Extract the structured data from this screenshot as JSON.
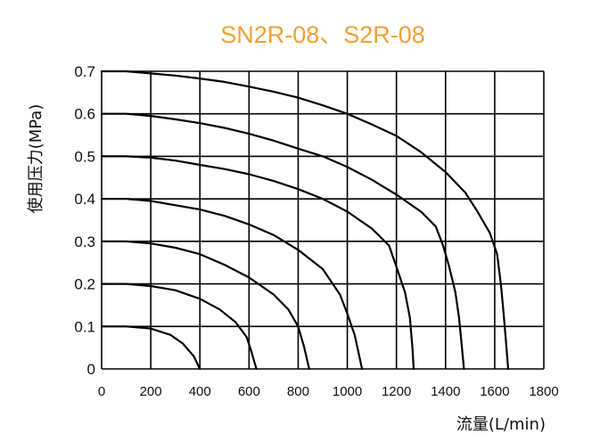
{
  "colors": {
    "title": "#F2A033",
    "line": "#000000",
    "grid": "#000000"
  },
  "chart_data": {
    "type": "line",
    "title": "SN2R-08、S2R-08",
    "xlabel": "流量(L/min)",
    "ylabel": "使用压力(MPa)",
    "xlim": [
      0,
      1800
    ],
    "ylim": [
      0,
      0.7
    ],
    "grid": true,
    "x_ticks": [
      "0",
      "200",
      "400",
      "600",
      "800",
      "1000",
      "1200",
      "1400",
      "1600",
      "1800"
    ],
    "y_ticks": [
      "0",
      "0.1",
      "0.2",
      "0.3",
      "0.4",
      "0.5",
      "0.6",
      "0.7"
    ],
    "series": [
      {
        "pressure": 0.1,
        "points": [
          [
            0,
            0.1
          ],
          [
            100,
            0.1
          ],
          [
            200,
            0.095
          ],
          [
            280,
            0.08
          ],
          [
            330,
            0.06
          ],
          [
            375,
            0.03
          ],
          [
            400,
            0.0
          ]
        ]
      },
      {
        "pressure": 0.2,
        "points": [
          [
            0,
            0.2
          ],
          [
            100,
            0.2
          ],
          [
            200,
            0.195
          ],
          [
            300,
            0.185
          ],
          [
            400,
            0.165
          ],
          [
            480,
            0.14
          ],
          [
            545,
            0.11
          ],
          [
            590,
            0.075
          ],
          [
            610,
            0.04
          ],
          [
            630,
            0.0
          ]
        ]
      },
      {
        "pressure": 0.3,
        "points": [
          [
            0,
            0.3
          ],
          [
            100,
            0.3
          ],
          [
            200,
            0.295
          ],
          [
            300,
            0.285
          ],
          [
            400,
            0.27
          ],
          [
            500,
            0.245
          ],
          [
            600,
            0.215
          ],
          [
            700,
            0.175
          ],
          [
            760,
            0.14
          ],
          [
            800,
            0.1
          ],
          [
            825,
            0.05
          ],
          [
            845,
            0.0
          ]
        ]
      },
      {
        "pressure": 0.4,
        "points": [
          [
            0,
            0.4
          ],
          [
            100,
            0.4
          ],
          [
            200,
            0.395
          ],
          [
            300,
            0.385
          ],
          [
            400,
            0.375
          ],
          [
            500,
            0.36
          ],
          [
            600,
            0.34
          ],
          [
            700,
            0.315
          ],
          [
            800,
            0.28
          ],
          [
            900,
            0.235
          ],
          [
            970,
            0.175
          ],
          [
            1000,
            0.13
          ],
          [
            1030,
            0.08
          ],
          [
            1060,
            0.0
          ]
        ]
      },
      {
        "pressure": 0.5,
        "points": [
          [
            0,
            0.5
          ],
          [
            100,
            0.5
          ],
          [
            200,
            0.497
          ],
          [
            300,
            0.49
          ],
          [
            400,
            0.48
          ],
          [
            500,
            0.47
          ],
          [
            600,
            0.458
          ],
          [
            700,
            0.442
          ],
          [
            800,
            0.423
          ],
          [
            900,
            0.4
          ],
          [
            1000,
            0.37
          ],
          [
            1100,
            0.33
          ],
          [
            1170,
            0.29
          ],
          [
            1200,
            0.24
          ],
          [
            1235,
            0.18
          ],
          [
            1255,
            0.12
          ],
          [
            1265,
            0.05
          ],
          [
            1270,
            0.0
          ]
        ]
      },
      {
        "pressure": 0.6,
        "points": [
          [
            0,
            0.6
          ],
          [
            100,
            0.6
          ],
          [
            200,
            0.595
          ],
          [
            300,
            0.587
          ],
          [
            400,
            0.578
          ],
          [
            500,
            0.567
          ],
          [
            600,
            0.553
          ],
          [
            700,
            0.537
          ],
          [
            800,
            0.518
          ],
          [
            900,
            0.5
          ],
          [
            1000,
            0.475
          ],
          [
            1100,
            0.445
          ],
          [
            1200,
            0.41
          ],
          [
            1300,
            0.37
          ],
          [
            1360,
            0.335
          ],
          [
            1390,
            0.29
          ],
          [
            1415,
            0.24
          ],
          [
            1440,
            0.18
          ],
          [
            1455,
            0.12
          ],
          [
            1465,
            0.06
          ],
          [
            1475,
            0.0
          ]
        ]
      },
      {
        "pressure": 0.7,
        "points": [
          [
            0,
            0.7
          ],
          [
            100,
            0.7
          ],
          [
            200,
            0.695
          ],
          [
            300,
            0.69
          ],
          [
            400,
            0.683
          ],
          [
            500,
            0.675
          ],
          [
            600,
            0.664
          ],
          [
            700,
            0.652
          ],
          [
            800,
            0.638
          ],
          [
            900,
            0.62
          ],
          [
            1000,
            0.6
          ],
          [
            1100,
            0.575
          ],
          [
            1200,
            0.548
          ],
          [
            1300,
            0.51
          ],
          [
            1400,
            0.463
          ],
          [
            1480,
            0.415
          ],
          [
            1530,
            0.37
          ],
          [
            1580,
            0.32
          ],
          [
            1610,
            0.27
          ],
          [
            1625,
            0.2
          ],
          [
            1635,
            0.14
          ],
          [
            1645,
            0.07
          ],
          [
            1655,
            0.0
          ]
        ]
      }
    ]
  }
}
